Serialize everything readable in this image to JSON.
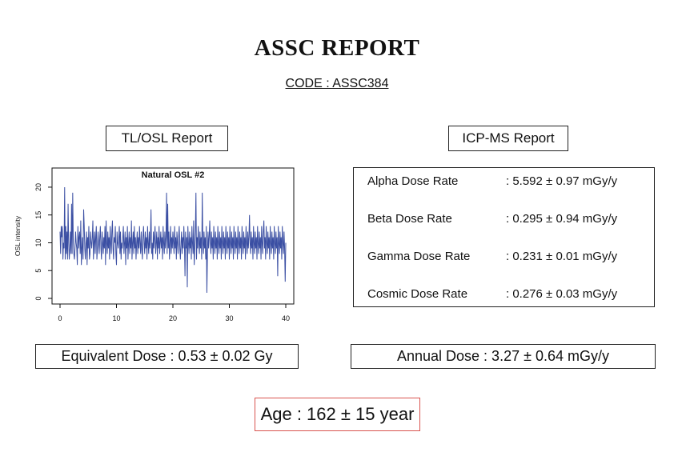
{
  "header": {
    "title": "ASSC REPORT",
    "code": "CODE : ASSC384"
  },
  "sections": {
    "tl_osl_label": "TL/OSL Report",
    "icp_ms_label": "ICP-MS Report"
  },
  "icp_ms": {
    "rows": [
      {
        "label": "Alpha Dose Rate",
        "value": ": 5.592 ± 0.97 mGy/y"
      },
      {
        "label": "Beta Dose Rate",
        "value": ": 0.295 ± 0.94 mGy/y"
      },
      {
        "label": "Gamma Dose Rate",
        "value": ": 0.231 ± 0.01 mGy/y"
      },
      {
        "label": "Cosmic Dose Rate",
        "value": ": 0.276 ± 0.03 mGy/y"
      }
    ]
  },
  "results": {
    "equivalent_dose": "Equivalent Dose : 0.53 ± 0.02 Gy",
    "annual_dose": "Annual Dose : 3.27 ± 0.64 mGy/y",
    "age": "Age : 162 ± 15 year"
  },
  "chart_data": {
    "type": "line",
    "title": "Natural OSL #2",
    "xlabel": "",
    "ylabel": "OSL intensity",
    "xlim": [
      0,
      40
    ],
    "ylim": [
      0,
      21
    ],
    "xticks": [
      "0",
      "10",
      "20",
      "30",
      "40"
    ],
    "yticks": [
      "0",
      "5",
      "10",
      "15",
      "20"
    ],
    "grid": false,
    "line_color": "#3b4fa3",
    "series": [
      {
        "values": [
          12,
          8,
          13,
          11,
          13,
          7,
          10,
          9,
          20,
          7,
          13,
          8,
          12,
          7,
          17,
          10,
          7,
          9,
          12,
          8,
          17,
          8,
          19,
          10,
          8,
          7,
          9,
          12,
          10,
          9,
          6,
          13,
          9,
          11,
          12,
          8,
          14,
          6,
          9,
          11,
          7,
          16,
          13,
          9,
          7,
          10,
          12,
          6,
          11,
          9,
          13,
          7,
          8,
          12,
          10,
          9,
          11,
          14,
          7,
          10,
          12,
          8,
          11,
          13,
          7,
          9,
          12,
          10,
          8,
          11,
          13,
          9,
          7,
          12,
          10,
          8,
          11,
          9,
          13,
          6,
          14,
          10,
          8,
          12,
          9,
          11,
          7,
          13,
          10,
          8,
          12,
          14,
          9,
          7,
          11,
          10,
          13,
          8,
          6,
          12,
          10,
          9,
          11,
          13,
          8,
          12,
          7,
          10,
          9,
          11,
          13,
          8,
          10,
          12,
          6,
          11,
          9,
          13,
          7,
          10,
          12,
          8,
          11,
          9,
          14,
          7,
          10,
          12,
          8,
          13,
          9,
          11,
          7,
          10,
          12,
          8,
          11,
          9,
          13,
          10,
          8,
          12,
          9,
          7,
          11,
          13,
          10,
          8,
          12,
          9,
          11,
          7,
          13,
          10,
          8,
          12,
          9,
          11,
          16,
          8,
          10,
          7,
          12,
          9,
          11,
          13,
          8,
          10,
          12,
          7,
          11,
          9,
          13,
          8,
          10,
          12,
          9,
          11,
          7,
          13,
          10,
          8,
          12,
          9,
          11,
          19,
          8,
          17,
          9,
          12,
          7,
          10,
          13,
          8,
          11,
          9,
          12,
          10,
          8,
          13,
          9,
          11,
          7,
          12,
          10,
          8,
          11,
          13,
          9,
          7,
          10,
          12,
          8,
          11,
          9,
          13,
          10,
          4,
          12,
          9,
          11,
          2,
          13,
          10,
          8,
          12,
          9,
          11,
          7,
          13,
          10,
          8,
          14,
          6,
          9,
          12,
          19,
          7,
          11,
          9,
          13,
          10,
          8,
          12,
          9,
          11,
          7,
          19,
          10,
          8,
          12,
          9,
          11,
          7,
          13,
          1,
          8,
          12,
          9,
          11,
          14,
          10,
          8,
          12,
          9,
          11,
          7,
          13,
          10,
          8,
          12,
          9,
          11,
          7,
          13,
          10,
          8,
          12,
          9,
          11,
          7,
          13,
          10,
          8,
          12,
          9,
          11,
          7,
          13,
          10,
          8,
          12,
          9,
          11,
          7,
          13,
          10,
          8,
          12,
          9,
          11,
          7,
          13,
          10,
          8,
          12,
          9,
          11,
          7,
          13,
          10,
          8,
          12,
          9,
          11,
          7,
          13,
          10,
          8,
          12,
          9,
          11,
          7,
          13,
          10,
          8,
          12,
          9,
          11,
          15,
          10,
          8,
          12,
          9,
          11,
          7,
          13,
          10,
          8,
          12,
          9,
          11,
          7,
          13,
          10,
          8,
          12,
          9,
          11,
          7,
          13,
          10,
          8,
          12,
          14,
          9,
          11,
          7,
          13,
          10,
          8,
          12,
          9,
          11,
          7,
          13,
          10,
          8,
          12,
          9,
          11,
          7,
          13,
          10,
          8,
          12,
          9,
          11,
          4,
          13,
          10,
          8,
          12,
          9,
          11,
          7,
          13,
          10,
          8,
          12,
          9,
          3,
          10
        ]
      }
    ]
  }
}
